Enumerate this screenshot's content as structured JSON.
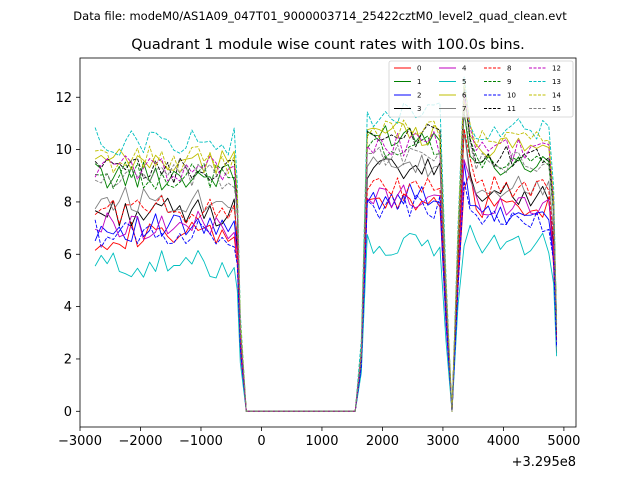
{
  "chart_data": {
    "type": "line",
    "suptitle": "Data file: modeM0/AS1A09_047T01_9000003714_25422cztM0_level2_quad_clean.evt",
    "title": "Quadrant 1 module wise count rates with 100.0s bins.",
    "xlabel": "",
    "ylabel": "",
    "x_offset_label": "+3.295e8",
    "xlim": [
      -3000,
      5200
    ],
    "ylim": [
      -0.6,
      13.5
    ],
    "x_ticks": [
      -3000,
      -2000,
      -1000,
      0,
      1000,
      2000,
      3000,
      4000,
      5000
    ],
    "x_tick_labels": [
      "−3000",
      "−2000",
      "−1000",
      "0",
      "1000",
      "2000",
      "3000",
      "4000",
      "5000"
    ],
    "y_ticks": [
      0,
      2,
      4,
      6,
      8,
      10,
      12
    ],
    "y_tick_labels": [
      "0",
      "2",
      "4",
      "6",
      "8",
      "10",
      "12"
    ],
    "grid": false,
    "legend_position": "top-right",
    "x": [
      -2750,
      -2650,
      -2550,
      -2450,
      -2350,
      -2250,
      -2150,
      -2050,
      -1950,
      -1850,
      -1750,
      -1650,
      -1550,
      -1450,
      -1350,
      -1250,
      -1150,
      -1050,
      -950,
      -850,
      -750,
      -650,
      -550,
      -450,
      -400,
      -350,
      -250,
      -150,
      0,
      500,
      1000,
      1550,
      1650,
      1750,
      1850,
      1950,
      2050,
      2150,
      2250,
      2350,
      2450,
      2550,
      2650,
      2750,
      2850,
      2950,
      3050,
      3150,
      3250,
      3350,
      3450,
      3550,
      3650,
      3750,
      3850,
      3950,
      4050,
      4150,
      4250,
      4350,
      4450,
      4550,
      4650,
      4750,
      4830,
      4880
    ],
    "series": [
      {
        "name": "0",
        "color": "#ff0000",
        "dash": false,
        "level": 6.7,
        "p1": 1.3,
        "p2": 1.9,
        "p3": 2.3
      },
      {
        "name": "1",
        "color": "#008000",
        "dash": false,
        "level": 9.0,
        "p1": 1.6,
        "p2": 2.6,
        "p3": 0.9
      },
      {
        "name": "2",
        "color": "#0000ff",
        "dash": false,
        "level": 7.0,
        "p1": 1.2,
        "p2": 2.4,
        "p3": 1.0
      },
      {
        "name": "3",
        "color": "#000000",
        "dash": false,
        "level": 7.6,
        "p1": 1.6,
        "p2": 3.2,
        "p3": 1.4
      },
      {
        "name": "4",
        "color": "#bf00bf",
        "dash": false,
        "level": 7.1,
        "p1": 1.1,
        "p2": 2.5,
        "p3": 1.6
      },
      {
        "name": "5",
        "color": "#00bfbf",
        "dash": false,
        "level": 5.6,
        "p1": 0.7,
        "p2": 0.7,
        "p3": 1.6
      },
      {
        "name": "6",
        "color": "#bfbf00",
        "dash": false,
        "level": 9.5,
        "p1": 1.1,
        "p2": 2.3,
        "p3": 1.2
      },
      {
        "name": "7",
        "color": "#808080",
        "dash": false,
        "level": 8.1,
        "p1": 1.2,
        "p2": 2.7,
        "p3": 0.9
      },
      {
        "name": "8",
        "color": "#ff0000",
        "dash": true,
        "level": 7.7,
        "p1": 0.8,
        "p2": 3.0,
        "p3": 1.7
      },
      {
        "name": "9",
        "color": "#008000",
        "dash": true,
        "level": 9.0,
        "p1": 1.1,
        "p2": 3.2,
        "p3": 1.1
      },
      {
        "name": "10",
        "color": "#0000ff",
        "dash": true,
        "level": 6.8,
        "p1": 1.0,
        "p2": 2.1,
        "p3": 0.9
      },
      {
        "name": "11",
        "color": "#000000",
        "dash": true,
        "level": 9.2,
        "p1": 1.3,
        "p2": 3.0,
        "p3": 1.2
      },
      {
        "name": "12",
        "color": "#bf00bf",
        "dash": true,
        "level": 9.3,
        "p1": 0.9,
        "p2": 2.8,
        "p3": 1.4
      },
      {
        "name": "13",
        "color": "#00bfbf",
        "dash": true,
        "level": 10.3,
        "p1": 1.0,
        "p2": 2.5,
        "p3": 0.9
      },
      {
        "name": "14",
        "color": "#bfbf00",
        "dash": true,
        "level": 9.6,
        "p1": 1.2,
        "p2": 2.9,
        "p3": 1.6
      },
      {
        "name": "15",
        "color": "#808080",
        "dash": true,
        "level": 8.9,
        "p1": 0.9,
        "p2": 2.5,
        "p3": 1.2
      }
    ]
  }
}
